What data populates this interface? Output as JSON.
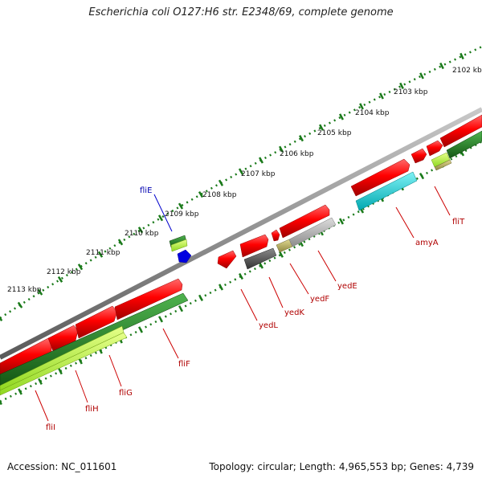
{
  "title": "Escherichia coli O127:H6 str. E2348/69, complete genome",
  "footer": {
    "accession": "Accession: NC_011601",
    "summary": "Topology: circular; Length: 4,965,553 bp; Genes: 4,739"
  },
  "scale_labels": [
    "2102 kbp",
    "2103 kbp",
    "2104 kbp",
    "2105 kbp",
    "2106 kbp",
    "2107 kbp",
    "2108 kbp",
    "2109 kbp",
    "2110 kbp",
    "2111 kbp",
    "2112 kbp",
    "2113 kbp"
  ],
  "genes": [
    {
      "name": "fliT",
      "color": "#c00000"
    },
    {
      "name": "amyA",
      "color": "#c00000"
    },
    {
      "name": "yedE",
      "color": "#c00000"
    },
    {
      "name": "yedF",
      "color": "#c00000"
    },
    {
      "name": "yedK",
      "color": "#c00000"
    },
    {
      "name": "yedL",
      "color": "#c00000"
    },
    {
      "name": "fliF",
      "color": "#c00000"
    },
    {
      "name": "fliG",
      "color": "#c00000"
    },
    {
      "name": "fliH",
      "color": "#c00000"
    },
    {
      "name": "fliI",
      "color": "#c00000"
    },
    {
      "name": "fliE",
      "color": "#0000c0"
    }
  ],
  "colors": {
    "backbone": "#8a8a8a",
    "cds_forward": "#e00000",
    "cds_dark_green": "#1f7a1f",
    "cds_light_green": "#b7f03a",
    "cyan": "#00c8d0",
    "gray": "#a8a8a8",
    "dark_gray": "#555555",
    "olive": "#b8b060",
    "blue": "#0000e0",
    "ticks": "#1a7a1a"
  }
}
